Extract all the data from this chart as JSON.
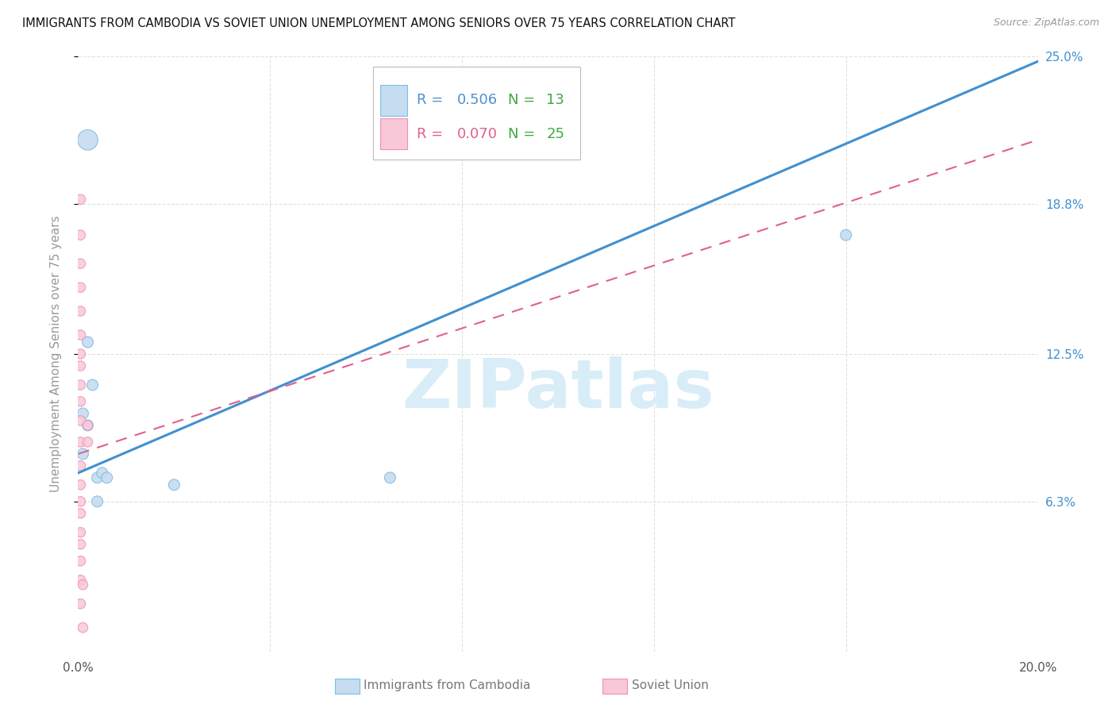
{
  "title": "IMMIGRANTS FROM CAMBODIA VS SOVIET UNION UNEMPLOYMENT AMONG SENIORS OVER 75 YEARS CORRELATION CHART",
  "source": "Source: ZipAtlas.com",
  "ylabel": "Unemployment Among Seniors over 75 years",
  "xlabel_cambodia": "Immigrants from Cambodia",
  "xlabel_soviet": "Soviet Union",
  "xlim": [
    0.0,
    0.2
  ],
  "ylim": [
    0.0,
    0.25
  ],
  "ytick_vals": [
    0.063,
    0.125,
    0.188,
    0.25
  ],
  "ytick_labels": [
    "6.3%",
    "12.5%",
    "18.8%",
    "25.0%"
  ],
  "xtick_vals": [
    0.0,
    0.04,
    0.08,
    0.12,
    0.16,
    0.2
  ],
  "xtick_labels": [
    "0.0%",
    "",
    "",
    "",
    "",
    "20.0%"
  ],
  "cambodia_fill": "#c6dcf0",
  "cambodia_edge": "#7fbde4",
  "soviet_fill": "#f9c8d8",
  "soviet_edge": "#f090b0",
  "cambodia_line_color": "#4090d0",
  "soviet_line_color": "#e06090",
  "legend_R_cambodia": "#5090d0",
  "legend_R_soviet": "#e06090",
  "legend_N_color": "#40aa40",
  "R_cambodia": "0.506",
  "N_cambodia": "13",
  "R_soviet": "0.070",
  "N_soviet": "25",
  "cambodia_x": [
    0.001,
    0.001,
    0.002,
    0.002,
    0.003,
    0.004,
    0.004,
    0.005,
    0.006,
    0.02,
    0.065,
    0.16,
    0.002
  ],
  "cambodia_y": [
    0.1,
    0.083,
    0.13,
    0.095,
    0.112,
    0.073,
    0.063,
    0.075,
    0.073,
    0.07,
    0.073,
    0.175,
    0.215
  ],
  "cambodia_size": [
    100,
    100,
    100,
    100,
    100,
    100,
    100,
    100,
    100,
    100,
    100,
    100,
    340
  ],
  "soviet_x": [
    0.0005,
    0.0005,
    0.0005,
    0.0005,
    0.0005,
    0.0005,
    0.0005,
    0.0005,
    0.0005,
    0.0005,
    0.0005,
    0.0005,
    0.0005,
    0.0005,
    0.0005,
    0.0005,
    0.0005,
    0.0005,
    0.0005,
    0.0005,
    0.0005,
    0.002,
    0.002,
    0.001,
    0.001
  ],
  "soviet_y": [
    0.19,
    0.175,
    0.163,
    0.153,
    0.143,
    0.133,
    0.125,
    0.12,
    0.112,
    0.105,
    0.097,
    0.088,
    0.078,
    0.07,
    0.063,
    0.058,
    0.05,
    0.045,
    0.038,
    0.03,
    0.02,
    0.095,
    0.088,
    0.028,
    0.01
  ],
  "soviet_size": [
    80,
    80,
    80,
    80,
    80,
    80,
    80,
    80,
    80,
    80,
    80,
    80,
    80,
    80,
    80,
    80,
    80,
    80,
    80,
    80,
    80,
    80,
    80,
    80,
    80
  ],
  "watermark_text": "ZIPatlas",
  "watermark_color": "#d8edf8",
  "background_color": "#ffffff",
  "grid_color": "#e0e0e0",
  "blue_line_x0": 0.0,
  "blue_line_y0": 0.075,
  "blue_line_x1": 0.2,
  "blue_line_y1": 0.248,
  "pink_line_x0": 0.0,
  "pink_line_y0": 0.083,
  "pink_line_x1": 0.2,
  "pink_line_y1": 0.215
}
